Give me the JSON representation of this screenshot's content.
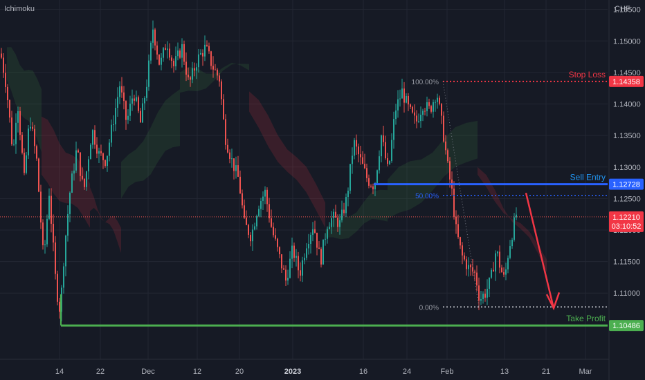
{
  "indicator_label": "Ichimoku",
  "currency": "CHF",
  "chart_data": {
    "type": "candlestick",
    "y_ticks": [
      "1.15500",
      "1.15000",
      "1.14500",
      "1.14000",
      "1.13500",
      "1.13000",
      "1.12500",
      "1.12000",
      "1.11500",
      "1.11000"
    ],
    "y_tick_values": [
      1.155,
      1.15,
      1.145,
      1.14,
      1.135,
      1.13,
      1.125,
      1.12,
      1.115,
      1.11
    ],
    "x_ticks": [
      "14",
      "22",
      "Dec",
      "12",
      "20",
      "2023",
      "16",
      "24",
      "Feb",
      "13",
      "21",
      "Mar"
    ],
    "ylim": [
      1.0995,
      1.1565
    ],
    "levels": {
      "stop_loss": {
        "label": "Stop Loss",
        "value": "1.14358",
        "price": 1.14358,
        "color": "#f23645"
      },
      "sell_entry": {
        "label": "Sell Entry",
        "value": "1.12728",
        "price": 1.12728,
        "color": "#2962ff"
      },
      "take_profit": {
        "label": "Take Profit",
        "value": "1.10486",
        "price": 1.10486,
        "color": "#4caf50"
      }
    },
    "fib": [
      {
        "label": "100.00%",
        "price": 1.14358
      },
      {
        "label": "50.00%",
        "price": 1.1255
      },
      {
        "label": "0.00%",
        "price": 1.1078
      }
    ],
    "current": {
      "price_label": "1.12210",
      "countdown": "03:10:52",
      "price": 1.1221
    },
    "swing_points": [
      [
        0,
        1.148
      ],
      [
        8,
        1.143
      ],
      [
        18,
        1.132
      ],
      [
        24,
        1.141
      ],
      [
        34,
        1.128
      ],
      [
        42,
        1.138
      ],
      [
        52,
        1.131
      ],
      [
        62,
        1.115
      ],
      [
        70,
        1.126
      ],
      [
        80,
        1.111
      ],
      [
        86,
        1.107
      ],
      [
        92,
        1.117
      ],
      [
        100,
        1.126
      ],
      [
        110,
        1.133
      ],
      [
        120,
        1.126
      ],
      [
        132,
        1.136
      ],
      [
        142,
        1.132
      ],
      [
        152,
        1.131
      ],
      [
        162,
        1.137
      ],
      [
        172,
        1.143
      ],
      [
        182,
        1.137
      ],
      [
        192,
        1.142
      ],
      [
        202,
        1.137
      ],
      [
        212,
        1.144
      ],
      [
        220,
        1.152
      ],
      [
        230,
        1.146
      ],
      [
        240,
        1.15
      ],
      [
        250,
        1.146
      ],
      [
        262,
        1.149
      ],
      [
        272,
        1.143
      ],
      [
        284,
        1.147
      ],
      [
        296,
        1.149
      ],
      [
        306,
        1.146
      ],
      [
        316,
        1.144
      ],
      [
        324,
        1.135
      ],
      [
        334,
        1.131
      ],
      [
        344,
        1.128
      ],
      [
        352,
        1.121
      ],
      [
        362,
        1.119
      ],
      [
        372,
        1.124
      ],
      [
        382,
        1.126
      ],
      [
        392,
        1.12
      ],
      [
        402,
        1.116
      ],
      [
        412,
        1.112
      ],
      [
        422,
        1.117
      ],
      [
        432,
        1.113
      ],
      [
        442,
        1.118
      ],
      [
        452,
        1.121
      ],
      [
        462,
        1.115
      ],
      [
        472,
        1.121
      ],
      [
        480,
        1.122
      ],
      [
        490,
        1.121
      ],
      [
        500,
        1.125
      ],
      [
        510,
        1.134
      ],
      [
        520,
        1.131
      ],
      [
        530,
        1.128
      ],
      [
        540,
        1.127
      ],
      [
        550,
        1.135
      ],
      [
        560,
        1.129
      ],
      [
        570,
        1.139
      ],
      [
        580,
        1.142
      ],
      [
        590,
        1.139
      ],
      [
        600,
        1.137
      ],
      [
        610,
        1.14
      ],
      [
        620,
        1.139
      ],
      [
        630,
        1.142
      ],
      [
        640,
        1.135
      ],
      [
        646,
        1.13
      ],
      [
        652,
        1.126
      ],
      [
        658,
        1.12
      ],
      [
        666,
        1.116
      ],
      [
        676,
        1.114
      ],
      [
        686,
        1.113
      ],
      [
        692,
        1.109
      ],
      [
        700,
        1.11
      ],
      [
        708,
        1.112
      ],
      [
        716,
        1.117
      ],
      [
        722,
        1.114
      ],
      [
        728,
        1.112
      ],
      [
        734,
        1.117
      ],
      [
        740,
        1.12
      ],
      [
        745,
        1.1225
      ]
    ],
    "cloud_regions": [
      {
        "x": [
          10,
          60
        ],
        "a": [
          1.149,
          1.143
        ],
        "b": [
          1.143,
          1.133
        ],
        "trend": "bull"
      },
      {
        "x": [
          60,
          130
        ],
        "a": [
          1.138,
          1.128
        ],
        "b": [
          1.128,
          1.121
        ],
        "trend": "bear"
      },
      {
        "x": [
          130,
          175
        ],
        "a": [
          1.123,
          1.121
        ],
        "b": [
          1.126,
          1.117
        ],
        "trend": "bear"
      },
      {
        "x": [
          175,
          260
        ],
        "a": [
          1.125,
          1.134
        ],
        "b": [
          1.13,
          1.143
        ],
        "trend": "bull"
      },
      {
        "x": [
          260,
          360
        ],
        "a": [
          1.145,
          1.146
        ],
        "b": [
          1.141,
          1.147
        ],
        "trend": "bull"
      },
      {
        "x": [
          360,
          470
        ],
        "a": [
          1.142,
          1.125
        ],
        "b": [
          1.138,
          1.121
        ],
        "trend": "bear"
      },
      {
        "x": [
          470,
          560
        ],
        "a": [
          1.12,
          1.127
        ],
        "b": [
          1.118,
          1.122
        ],
        "trend": "bull"
      },
      {
        "x": [
          560,
          690
        ],
        "a": [
          1.128,
          1.138
        ],
        "b": [
          1.121,
          1.132
        ],
        "trend": "bull"
      },
      {
        "x": [
          690,
          790
        ],
        "a": [
          1.13,
          1.114
        ],
        "b": [
          1.128,
          1.116
        ],
        "trend": "bear"
      }
    ]
  }
}
